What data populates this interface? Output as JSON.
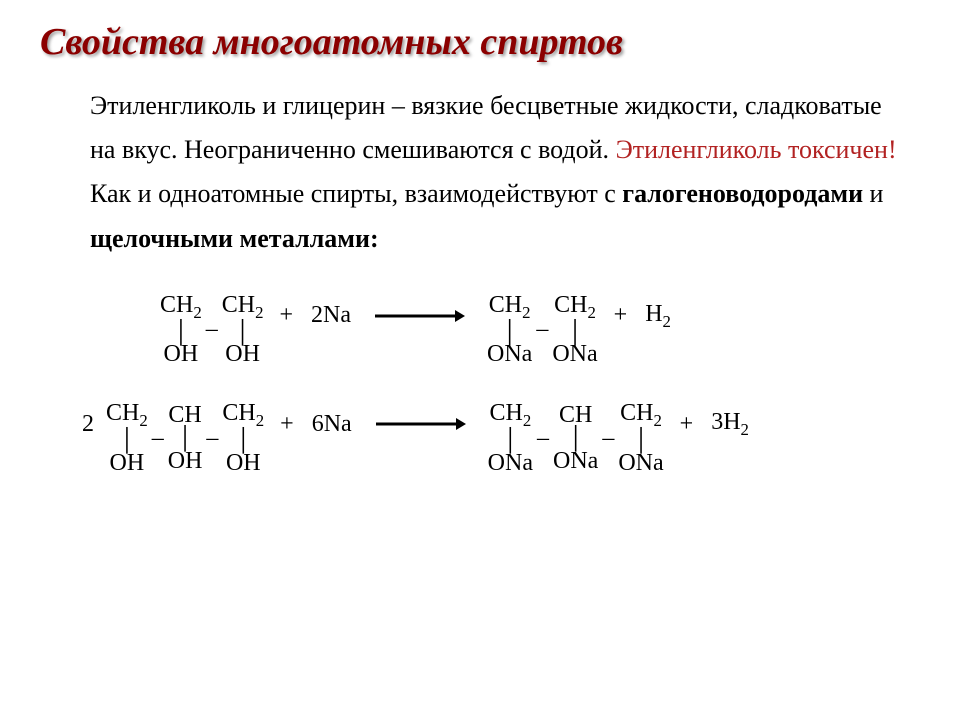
{
  "title": "Свойства многоатомных спиртов",
  "paragraph": {
    "p1": "Этиленгликоль и глицерин – вязкие бесцветные жидкости, сладковатые на вкус. Неограниченно смешиваются с водой. ",
    "warn": "Этиленгликоль токсичен!",
    "p2a": "Как и одноатомные спирты, взаимодействуют с ",
    "bold1": "галогеноводородами",
    "p2b": " и ",
    "bold2": "щелочными металлами:"
  },
  "colors": {
    "title_color": "#8b0000",
    "warn_color": "#b22222",
    "text_color": "#000000",
    "background": "#ffffff"
  },
  "equations": {
    "eq1": {
      "reactant_coef": "",
      "reactant_units": [
        {
          "top": "CH₂",
          "bottom": "OH"
        },
        {
          "top": "CH₂",
          "bottom": "OH"
        }
      ],
      "reagent": "2Na",
      "product_units": [
        {
          "top": "CH₂",
          "bottom": "ONa"
        },
        {
          "top": "CH₂",
          "bottom": "ONa"
        }
      ],
      "byproduct": "H₂"
    },
    "eq2": {
      "reactant_coef": "2",
      "reactant_units": [
        {
          "top": "CH₂",
          "bottom": "OH"
        },
        {
          "top": "CH",
          "bottom": "OH"
        },
        {
          "top": "CH₂",
          "bottom": "OH"
        }
      ],
      "reagent": "6Na",
      "product_units": [
        {
          "top": "CH₂",
          "bottom": "ONa"
        },
        {
          "top": "CH",
          "bottom": "ONa"
        },
        {
          "top": "CH₂",
          "bottom": "ONa"
        }
      ],
      "byproduct": "3H₂"
    }
  }
}
